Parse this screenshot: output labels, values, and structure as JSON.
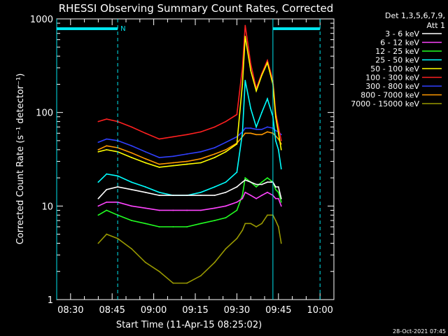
{
  "chart_data": {
    "type": "line",
    "title": "RHESSI Observing Summary Count Rates, Corrected",
    "ylabel": "Corrected Count Rate (s⁻¹ detector⁻¹)",
    "xlabel": "Start Time (11-Apr-15 08:25:02)",
    "y_scale": "log",
    "ylim": [
      1,
      1000
    ],
    "xlim": [
      "08:25",
      "10:05"
    ],
    "x_ticks": [
      "08:30",
      "08:45",
      "09:00",
      "09:15",
      "09:30",
      "09:45",
      "10:00"
    ],
    "y_ticks": [
      "1",
      "10",
      "100",
      "1000"
    ],
    "legend_header": [
      "Det 1,3,5,6,7,9,",
      "Att 1"
    ],
    "legend_placement": "right",
    "footer_date": "28-Oct-2021 07:45",
    "flag_bar_label": "N",
    "flag_bars": [
      {
        "from": "08:25",
        "to": "08:47"
      },
      {
        "from": "09:43",
        "to": "10:00"
      }
    ],
    "markers": [
      "08:25",
      "08:47",
      "09:43",
      "10:00"
    ],
    "x": [
      "08:40",
      "08:43",
      "08:47",
      "08:52",
      "08:57",
      "09:02",
      "09:07",
      "09:12",
      "09:17",
      "09:22",
      "09:26",
      "09:30",
      "09:32",
      "09:33",
      "09:35",
      "09:37",
      "09:39",
      "09:41",
      "09:43",
      "09:44",
      "09:45",
      "09:46"
    ],
    "series": [
      {
        "name": "3 - 6 keV",
        "color": "#ffffff",
        "values": [
          12,
          15,
          16,
          15,
          14,
          13,
          13,
          13,
          13,
          13,
          14,
          16,
          18,
          19,
          18,
          17,
          17,
          18,
          18,
          16,
          16,
          12
        ]
      },
      {
        "name": "6 - 12 keV",
        "color": "#ff44ff",
        "values": [
          10,
          11,
          11,
          10,
          9.5,
          9,
          9,
          9,
          9,
          9.5,
          10,
          11,
          12,
          14,
          13,
          12,
          13,
          14,
          13,
          12,
          12,
          10
        ]
      },
      {
        "name": "12 - 25 keV",
        "color": "#22ff22",
        "values": [
          8,
          9,
          8,
          7,
          6.5,
          6,
          6,
          6,
          6.5,
          7,
          7.5,
          9,
          13,
          20,
          18,
          16,
          18,
          20,
          18,
          15,
          14,
          11
        ]
      },
      {
        "name": "25 - 50 keV",
        "color": "#00ffff",
        "values": [
          18,
          22,
          21,
          18,
          16,
          14,
          13,
          13,
          14,
          16,
          18,
          23,
          60,
          220,
          110,
          70,
          100,
          140,
          90,
          50,
          40,
          25
        ]
      },
      {
        "name": "50 - 100 keV",
        "color": "#ffff00",
        "values": [
          38,
          40,
          38,
          33,
          29,
          26,
          27,
          28,
          29,
          33,
          38,
          46,
          200,
          650,
          280,
          170,
          250,
          340,
          200,
          90,
          60,
          40
        ]
      },
      {
        "name": "100 - 300 keV",
        "color": "#ff2020",
        "values": [
          80,
          85,
          80,
          70,
          60,
          52,
          55,
          58,
          62,
          70,
          80,
          95,
          300,
          850,
          330,
          180,
          260,
          360,
          220,
          100,
          70,
          50
        ]
      },
      {
        "name": "300 - 800 keV",
        "color": "#3040ff",
        "values": [
          48,
          52,
          50,
          44,
          38,
          33,
          34,
          36,
          38,
          42,
          48,
          55,
          62,
          68,
          68,
          66,
          66,
          70,
          68,
          64,
          62,
          58
        ]
      },
      {
        "name": "800 - 7000 keV",
        "color": "#ff9900",
        "values": [
          40,
          44,
          42,
          37,
          32,
          28,
          29,
          30,
          32,
          36,
          40,
          47,
          55,
          60,
          60,
          58,
          58,
          62,
          60,
          56,
          52,
          46
        ]
      },
      {
        "name": "7000 - 15000 keV",
        "color": "#999900",
        "values": [
          4,
          5,
          4.5,
          3.5,
          2.5,
          2,
          1.5,
          1.5,
          1.8,
          2.5,
          3.5,
          4.5,
          5.5,
          6.5,
          6.5,
          6,
          6.5,
          8,
          8,
          7,
          6,
          4
        ]
      }
    ]
  }
}
